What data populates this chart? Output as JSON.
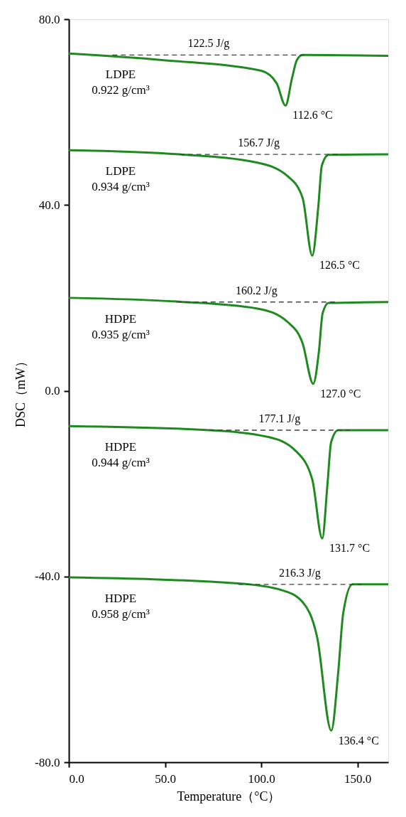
{
  "chart_data": {
    "type": "line",
    "xlabel": "Temperature（°C）",
    "ylabel": "DSC（mW）",
    "xlim": [
      0,
      166
    ],
    "xticks": [
      {
        "value": 0,
        "label": "0.0"
      },
      {
        "value": 50,
        "label": "50.0"
      },
      {
        "value": 100,
        "label": "100.0"
      },
      {
        "value": 150,
        "label": "150.0"
      }
    ],
    "ylim": [
      -80,
      80
    ],
    "yticks": [
      {
        "value": -80,
        "label": "-80.0"
      },
      {
        "value": -40,
        "label": "-40.0"
      },
      {
        "value": 0,
        "label": "0.0"
      },
      {
        "value": 40,
        "label": "40.0"
      },
      {
        "value": 80,
        "label": "80.0"
      }
    ],
    "grid": false,
    "marker": "none",
    "series": [
      {
        "name": "LDPE\n0.922 g/cm³",
        "color": "#1f8a1f",
        "line_style": "solid",
        "x": [
          0,
          48.5,
          100,
          108,
          112.6,
          116,
          118.5,
          121.5,
          166
        ],
        "values": [
          72.6,
          71.2,
          68.9,
          66.2,
          61.4,
          67.3,
          71.2,
          72.3,
          72.1
        ]
      },
      {
        "name": "LDPE\n0.934 g/cm³",
        "color": "#1f8a1f",
        "line_style": "solid",
        "x": [
          0,
          57.4,
          98,
          114,
          121.5,
          126.5,
          129.6,
          131.5,
          135,
          166
        ],
        "values": [
          51.8,
          50.9,
          49.1,
          46.1,
          41.5,
          29.1,
          39.4,
          48.5,
          50.8,
          50.9
        ]
      },
      {
        "name": "HDPE\n0.935 g/cm³",
        "color": "#1f8a1f",
        "line_style": "solid",
        "x": [
          0,
          56,
          98,
          114,
          121.5,
          127.0,
          130,
          131.9,
          135,
          166
        ],
        "values": [
          20,
          19.2,
          17.7,
          14.7,
          10.2,
          1.5,
          8.6,
          16.7,
          18.9,
          19.1
        ]
      },
      {
        "name": "HDPE\n0.944 g/cm³",
        "color": "#1f8a1f",
        "line_style": "solid",
        "x": [
          0,
          73,
          104,
          118,
          126.5,
          131.7,
          134.4,
          136.3,
          140,
          166
        ],
        "values": [
          -7.6,
          -8.5,
          -10.0,
          -13.0,
          -19.1,
          -31.8,
          -20.2,
          -11.1,
          -8.5,
          -8.5
        ]
      },
      {
        "name": "HDPE\n0.958 g/cm³",
        "color": "#1f8a1f",
        "line_style": "solid",
        "x": [
          0,
          88,
          110.4,
          121.5,
          129,
          136.4,
          140,
          142.6,
          147.4,
          166
        ],
        "values": [
          -40.2,
          -41.5,
          -42.9,
          -45.5,
          -53,
          -73.2,
          -60.6,
          -47.9,
          -41.7,
          -41.7
        ]
      },
      {
        "color": "#404040",
        "line_style": "dashed",
        "x": [
          22.6,
          122.6
        ],
        "values": [
          72.3,
          72.3
        ]
      },
      {
        "color": "#404040",
        "line_style": "dashed",
        "x": [
          57.4,
          140
        ],
        "values": [
          50.9,
          50.9
        ]
      },
      {
        "color": "#404040",
        "line_style": "dashed",
        "x": [
          56,
          139
        ],
        "values": [
          19.1,
          19.1
        ]
      },
      {
        "color": "#404040",
        "line_style": "dashed",
        "x": [
          73,
          146
        ],
        "values": [
          -8.5,
          -8.5
        ]
      },
      {
        "color": "#404040",
        "line_style": "dashed",
        "x": [
          88,
          152
        ],
        "values": [
          -41.7,
          -41.7
        ]
      }
    ],
    "annotations": [
      {
        "text": "122.5 J/g",
        "x": 72.6,
        "y": 72.3
      },
      {
        "text": "112.6 °C",
        "x": 112.6,
        "y": 61.4
      },
      {
        "text": "156.7 J/g",
        "x": 98.7,
        "y": 50.9
      },
      {
        "text": "126.5 °C",
        "x": 126.5,
        "y": 29.1
      },
      {
        "text": "160.2 J/g",
        "x": 97.5,
        "y": 19.1
      },
      {
        "text": "127.0 °C",
        "x": 127.0,
        "y": 1.5
      },
      {
        "text": "177.1 J/g",
        "x": 109.5,
        "y": -8.5
      },
      {
        "text": "131.7 °C",
        "x": 131.7,
        "y": -31.8
      },
      {
        "text": "216.3 J/g",
        "x": 120,
        "y": -41.7
      },
      {
        "text": "136.4 °C",
        "x": 136.4,
        "y": -73.2
      }
    ]
  }
}
